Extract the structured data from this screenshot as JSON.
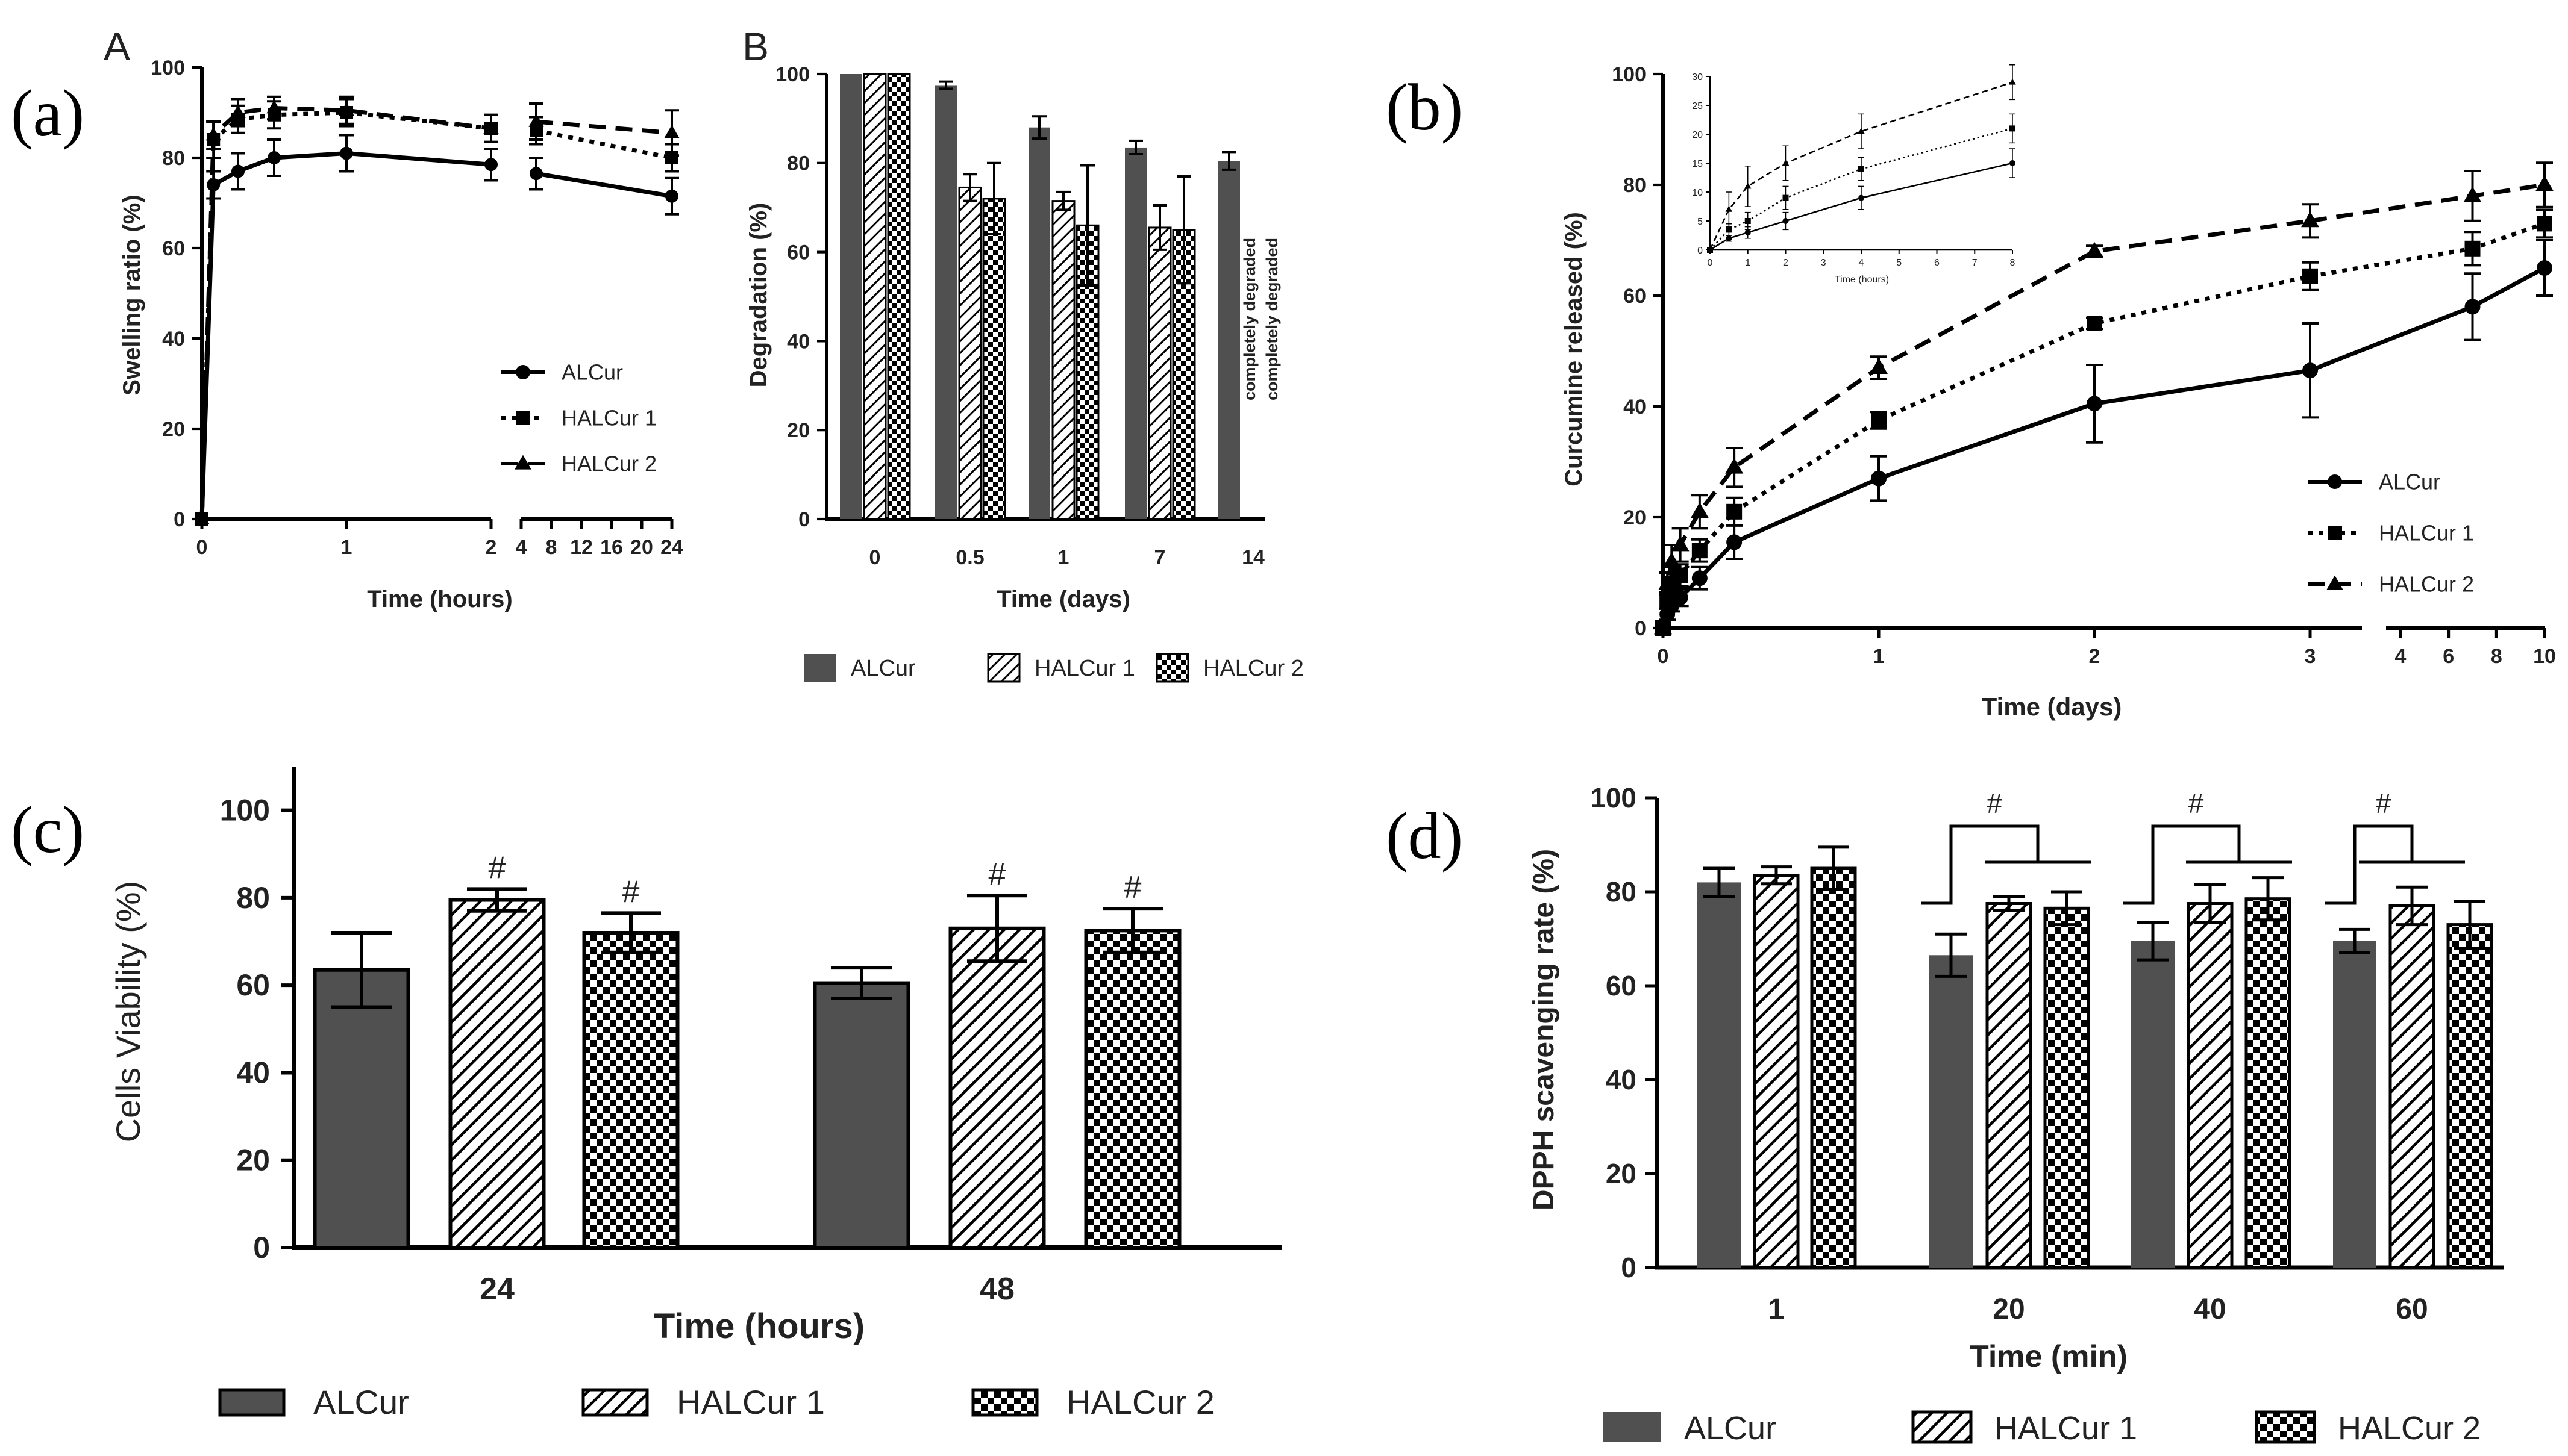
{
  "panels": {
    "a": {
      "label": "(a)",
      "corner": "A"
    },
    "b": {
      "label": "(b)"
    },
    "c": {
      "label": "(c)"
    },
    "d": {
      "label": "(d)"
    },
    "sub_b": {
      "corner": "B"
    }
  },
  "chart_data": [
    {
      "id": "a",
      "type": "line",
      "title": "",
      "xlabel": "Time (hours)",
      "ylabel": "Swelling ratio (%)",
      "ylim": [
        0,
        100
      ],
      "yticks": [
        0,
        20,
        40,
        60,
        80,
        100
      ],
      "x_seg1_ticks": [
        "0",
        "1",
        "2"
      ],
      "x_seg2_ticks": [
        "4",
        "8",
        "12",
        "16",
        "20",
        "24"
      ],
      "x_seg1_range": [
        0,
        2
      ],
      "x_seg2_range": [
        4,
        24
      ],
      "series": [
        {
          "name": "ALCur",
          "marker": "circle",
          "dash": "solid",
          "x": [
            0,
            0.08,
            0.25,
            0.5,
            1,
            2,
            6,
            24
          ],
          "y": [
            0,
            74,
            77,
            80,
            81,
            78.5,
            76.5,
            71.5
          ],
          "err": [
            0,
            3,
            4,
            4,
            4,
            3.5,
            3.5,
            4
          ]
        },
        {
          "name": "HALCur 1",
          "marker": "square",
          "dash": "dotted",
          "x": [
            0,
            0.08,
            0.25,
            0.5,
            1,
            2,
            6,
            24
          ],
          "y": [
            0,
            84,
            88.5,
            89.5,
            90,
            86.5,
            86,
            80
          ],
          "err": [
            0,
            4,
            3,
            3,
            3,
            3,
            3,
            3
          ]
        },
        {
          "name": "HALCur 2",
          "marker": "triangle",
          "dash": "dashed",
          "x": [
            0,
            0.08,
            0.25,
            0.5,
            1,
            2,
            6,
            24
          ],
          "y": [
            0,
            85,
            90,
            91,
            90.5,
            86.5,
            88,
            85.5
          ],
          "err": [
            0,
            3,
            3,
            2.5,
            3,
            3,
            4,
            5
          ]
        }
      ]
    },
    {
      "id": "b_degradation",
      "type": "bar",
      "xlabel": "Time (days)",
      "ylabel": "Degradation (%)",
      "ylim": [
        0,
        100
      ],
      "yticks": [
        0,
        20,
        40,
        60,
        80,
        100
      ],
      "categories": [
        "0",
        "0.5",
        "1",
        "7",
        "14"
      ],
      "annotation": "completely degraded",
      "series": [
        {
          "name": "ALCur",
          "pattern": "solid",
          "values": [
            100,
            97.5,
            88,
            83.5,
            80.5
          ],
          "err": [
            0,
            0.8,
            2.5,
            1.5,
            2
          ]
        },
        {
          "name": "HALCur 1",
          "pattern": "hatch",
          "values": [
            100,
            74.5,
            71.5,
            65.5,
            null
          ],
          "err": [
            0,
            3,
            2,
            5,
            0
          ]
        },
        {
          "name": "HALCur 2",
          "pattern": "checker",
          "values": [
            100,
            72,
            66,
            65,
            null
          ],
          "err": [
            0,
            8,
            13.5,
            12,
            0
          ]
        }
      ]
    },
    {
      "id": "b_release",
      "type": "line",
      "xlabel": "Time (days)",
      "ylabel": "Curcumine released (%)",
      "ylim": [
        0,
        100
      ],
      "yticks": [
        0,
        20,
        40,
        60,
        80,
        100
      ],
      "x_seg1_ticks": [
        "0",
        "1",
        "2",
        "3"
      ],
      "x_seg2_ticks": [
        "4",
        "6",
        "8",
        "10"
      ],
      "x_seg1_range": [
        0,
        3.25
      ],
      "x_seg2_range": [
        3.5,
        10
      ],
      "series": [
        {
          "name": "ALCur",
          "marker": "circle",
          "dash": "solid",
          "x": [
            0,
            0.02,
            0.04,
            0.08,
            0.17,
            0.33,
            1,
            2,
            3,
            7,
            10
          ],
          "y": [
            0,
            2.5,
            4,
            5.5,
            9,
            15.5,
            27,
            40.5,
            46.5,
            58,
            65
          ],
          "err": [
            0,
            1,
            1,
            1.5,
            2,
            3,
            4,
            7,
            8.5,
            6,
            5
          ]
        },
        {
          "name": "HALCur 1",
          "marker": "square",
          "dash": "dotted",
          "x": [
            0,
            0.02,
            0.04,
            0.08,
            0.17,
            0.33,
            1,
            2,
            3,
            7,
            10
          ],
          "y": [
            0,
            5,
            8,
            9.5,
            14,
            21,
            37.5,
            55,
            63.5,
            68.5,
            73
          ],
          "err": [
            0,
            1.5,
            2,
            2,
            2,
            2.5,
            1.5,
            1,
            2.5,
            3,
            2.5
          ]
        },
        {
          "name": "HALCur 2",
          "marker": "triangle",
          "dash": "dashed",
          "x": [
            0,
            0.02,
            0.04,
            0.08,
            0.17,
            0.33,
            1,
            2,
            3,
            7,
            10
          ],
          "y": [
            0,
            8,
            12,
            15,
            21,
            29,
            47,
            68,
            73.5,
            78,
            80
          ],
          "err": [
            0,
            2,
            3,
            3,
            3,
            3.5,
            2,
            1,
            3,
            4.5,
            4
          ]
        }
      ],
      "inset": {
        "xlabel": "Time (hours)",
        "xticks": [
          "0",
          "1",
          "2",
          "3",
          "4",
          "5",
          "6",
          "7",
          "8"
        ],
        "yticks": [
          "0",
          "5",
          "10",
          "15",
          "20",
          "25",
          "30"
        ],
        "ylim": [
          0,
          30
        ],
        "xlim": [
          0,
          8
        ],
        "series": [
          {
            "name": "ALCur",
            "dash": "solid",
            "x": [
              0,
              0.5,
              1,
              2,
              4,
              8
            ],
            "y": [
              0,
              2,
              3,
              5,
              9,
              15
            ],
            "err": [
              0,
              0.5,
              1,
              1.5,
              2,
              2.5
            ]
          },
          {
            "name": "HALCur 1",
            "dash": "dotted",
            "x": [
              0,
              0.5,
              1,
              2,
              4,
              8
            ],
            "y": [
              0,
              3.5,
              5,
              9,
              14,
              21
            ],
            "err": [
              0,
              1,
              1.5,
              2,
              2,
              2.5
            ]
          },
          {
            "name": "HALCur 2",
            "dash": "dashed",
            "x": [
              0,
              0.5,
              1,
              2,
              4,
              8
            ],
            "y": [
              0,
              7,
              11,
              15,
              20.5,
              29
            ],
            "err": [
              0,
              3,
              3.5,
              3,
              3,
              3
            ]
          }
        ]
      }
    },
    {
      "id": "c",
      "type": "bar",
      "xlabel": "Time (hours)",
      "ylabel": "Cells Viability (%)",
      "ylim": [
        0,
        110
      ],
      "yticks": [
        0,
        20,
        40,
        60,
        80,
        100
      ],
      "categories": [
        "24",
        "48"
      ],
      "significance": "#",
      "series": [
        {
          "name": "ALCur",
          "pattern": "solid",
          "values": [
            63.5,
            60.5
          ],
          "err": [
            8.5,
            3.5
          ],
          "sig": [
            false,
            false
          ]
        },
        {
          "name": "HALCur 1",
          "pattern": "hatch",
          "values": [
            79.5,
            73
          ],
          "err": [
            2.5,
            7.5
          ],
          "sig": [
            true,
            true
          ]
        },
        {
          "name": "HALCur 2",
          "pattern": "checker",
          "values": [
            72,
            72.5
          ],
          "err": [
            4.5,
            5
          ],
          "sig": [
            true,
            true
          ]
        }
      ]
    },
    {
      "id": "d",
      "type": "bar",
      "xlabel": "Time (min)",
      "ylabel": "DPPH scavenging rate (%)",
      "ylim": [
        0,
        100
      ],
      "yticks": [
        0,
        20,
        40,
        60,
        80,
        100
      ],
      "categories": [
        "1",
        "20",
        "40",
        "60"
      ],
      "significance": "#",
      "series": [
        {
          "name": "ALCur",
          "pattern": "solid",
          "values": [
            82,
            66.5,
            69.5,
            69.5
          ],
          "err": [
            3,
            4.5,
            4,
            2.5
          ]
        },
        {
          "name": "HALCur 1",
          "pattern": "hatch",
          "values": [
            83.5,
            77.5,
            77.5,
            77
          ],
          "err": [
            1.8,
            1.5,
            4,
            4
          ]
        },
        {
          "name": "HALCur 2",
          "pattern": "checker",
          "values": [
            85,
            76.5,
            78.5,
            73
          ],
          "err": [
            4.5,
            3.5,
            4.5,
            5
          ]
        }
      ]
    }
  ]
}
